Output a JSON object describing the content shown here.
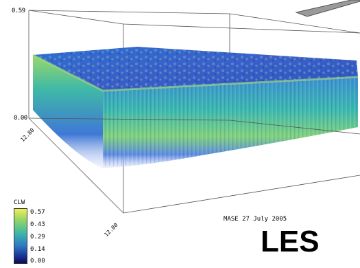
{
  "axes": {
    "z_top_label": "0.59",
    "z_bottom_label": "0.00",
    "x_label": "12.80",
    "y_label": "12.80"
  },
  "legend": {
    "title": "CLW",
    "ticks": [
      "0.57",
      "0.43",
      "0.29",
      "0.14",
      "0.00"
    ],
    "colors": [
      "#f2ee58",
      "#8ed36a",
      "#3eb6a8",
      "#2f79c4",
      "#0a0a5a"
    ]
  },
  "caption": "MASE 27 July 2005",
  "model_label": "LES"
}
